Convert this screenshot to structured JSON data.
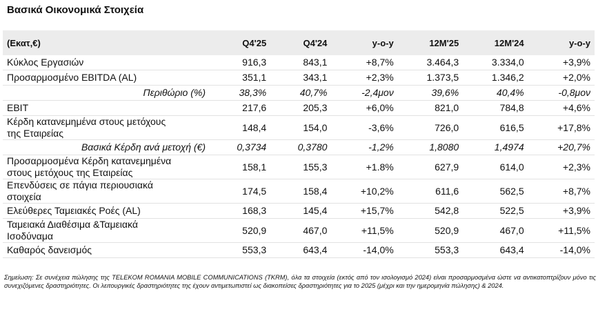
{
  "title": "Βασικά Οικονομικά Στοιχεία",
  "table": {
    "header": [
      "(Εκατ,€)",
      "Q4'25",
      "Q4'24",
      "y-o-y",
      "12M'25",
      "12M'24",
      "y-o-y"
    ],
    "rows": [
      {
        "label": "Κύκλος Εργασιών",
        "cells": [
          "916,3",
          "843,1",
          "+8,7%",
          "3.464,3",
          "3.334,0",
          "+3,9%"
        ]
      },
      {
        "label": "Προσαρμοσμένο EBITDA (AL)",
        "cells": [
          "351,1",
          "343,1",
          "+2,3%",
          "1.373,5",
          "1.346,2",
          "+2,0%"
        ]
      },
      {
        "label": "Περιθώριο (%)",
        "style": "italic",
        "cells": [
          "38,3%",
          "40,7%",
          "-2,4μον",
          "39,6%",
          "40,4%",
          "-0,8μον"
        ]
      },
      {
        "label": "EBIT",
        "cells": [
          "217,6",
          "205,3",
          "+6,0%",
          "821,0",
          "784,8",
          "+4,6%"
        ]
      },
      {
        "label": "Κέρδη κατανεμημένα στους μετόχους\nτης Εταιρείας",
        "cells": [
          "148,4",
          "154,0",
          "-3,6%",
          "726,0",
          "616,5",
          "+17,8%"
        ]
      },
      {
        "label": "Βασικά Κέρδη ανά μετοχή (€)",
        "style": "italic",
        "cells": [
          "0,3734",
          "0,3780",
          "-1,2%",
          "1,8080",
          "1,4974",
          "+20,7%"
        ]
      },
      {
        "label": "Προσαρμοσμένα Κέρδη κατανεμημένα\nστους μετόχους της Εταιρείας",
        "cells": [
          "158,1",
          "155,3",
          "+1.8%",
          "627,9",
          "614,0",
          "+2,3%"
        ]
      },
      {
        "label": "Επενδύσεις σε πάγια περιουσιακά\nστοιχεία",
        "cells": [
          "174,5",
          "158,4",
          "+10,2%",
          "611,6",
          "562,5",
          "+8,7%"
        ]
      },
      {
        "label": "Ελεύθερες Ταμειακές Ροές (AL)",
        "cells": [
          "168,3",
          "145,4",
          "+15,7%",
          "542,8",
          "522,5",
          "+3,9%"
        ]
      },
      {
        "label": "Ταμειακά Διαθέσιμα &Ταμειακά\nΙσοδύναμα",
        "cells": [
          "520,9",
          "467,0",
          "+11,5%",
          "520,9",
          "467,0",
          "+11,5%"
        ]
      },
      {
        "label": "Καθαρός δανεισμός",
        "cells": [
          "553,3",
          "643,4",
          "-14,0%",
          "553,3",
          "643,4",
          "-14,0%"
        ]
      }
    ]
  },
  "note": "Σημείωση: Σε συνέχεια πώλησης της TELEKOM ROMANIA MOBILE COMMUNICATIONS (TKRM), όλα τα στοιχεία (εκτός από τον ισολογισμό 2024) είναι προσαρμοσμένα ώστε να αντικατοπτρίζουν μόνο τις συνεχιζόμενες δραστηριότητες. Οι λειτουργικές δραστηριότητες της έχουν αντιμετωπιστεί ως διακοπείσες δραστηριότητες για το 2025 (μέχρι και την ημερομηνία πώλησης) & 2024."
}
